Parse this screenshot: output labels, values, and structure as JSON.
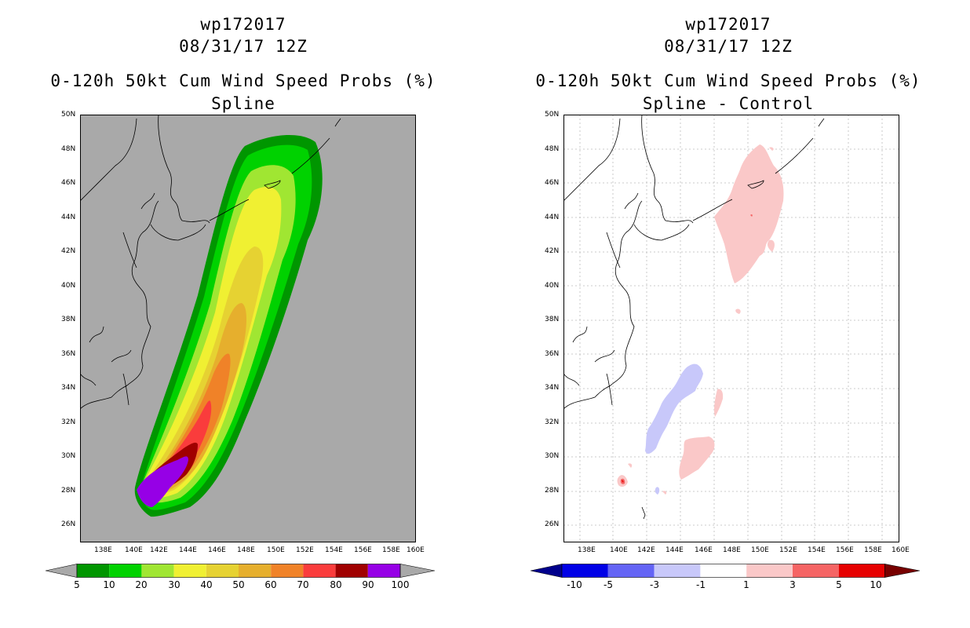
{
  "left_panel": {
    "storm_id": "wp172017",
    "datetime": "08/31/17 12Z",
    "product": "0-120h 50kt Cum Wind Speed Probs (%)",
    "subtitle": "Spline",
    "background": "#a9a9a9"
  },
  "right_panel": {
    "storm_id": "wp172017",
    "datetime": "08/31/17 12Z",
    "product": "0-120h 50kt Cum Wind Speed Probs (%)",
    "subtitle": "Spline - Control",
    "background": "#ffffff"
  },
  "axes": {
    "lat_labels": [
      "50N",
      "48N",
      "46N",
      "44N",
      "42N",
      "40N",
      "38N",
      "36N",
      "34N",
      "32N",
      "30N",
      "28N",
      "26N"
    ],
    "lon_labels": [
      "138E",
      "140E",
      "142E",
      "144E",
      "146E",
      "148E",
      "150E",
      "152E",
      "154E",
      "156E",
      "158E",
      "160E"
    ]
  },
  "left_colorbar": {
    "labels": [
      "5",
      "10",
      "20",
      "30",
      "40",
      "50",
      "60",
      "70",
      "80",
      "90",
      "100"
    ],
    "colors": [
      "#009600",
      "#00d200",
      "#a0e632",
      "#f0f032",
      "#e6d232",
      "#e6af2d",
      "#f08228",
      "#fa3c3c",
      "#a00000",
      "#9600e6"
    ],
    "end_color": "#a9a9a9"
  },
  "right_colorbar": {
    "labels": [
      "-10",
      "-5",
      "-3",
      "-1",
      "1",
      "3",
      "5",
      "10"
    ],
    "colors": [
      "#0000e6",
      "#6464f5",
      "#c8c8fa",
      "#ffffff",
      "#fac8c8",
      "#f56464",
      "#e60000"
    ],
    "low_end_color": "#00008c",
    "high_end_color": "#780000"
  }
}
